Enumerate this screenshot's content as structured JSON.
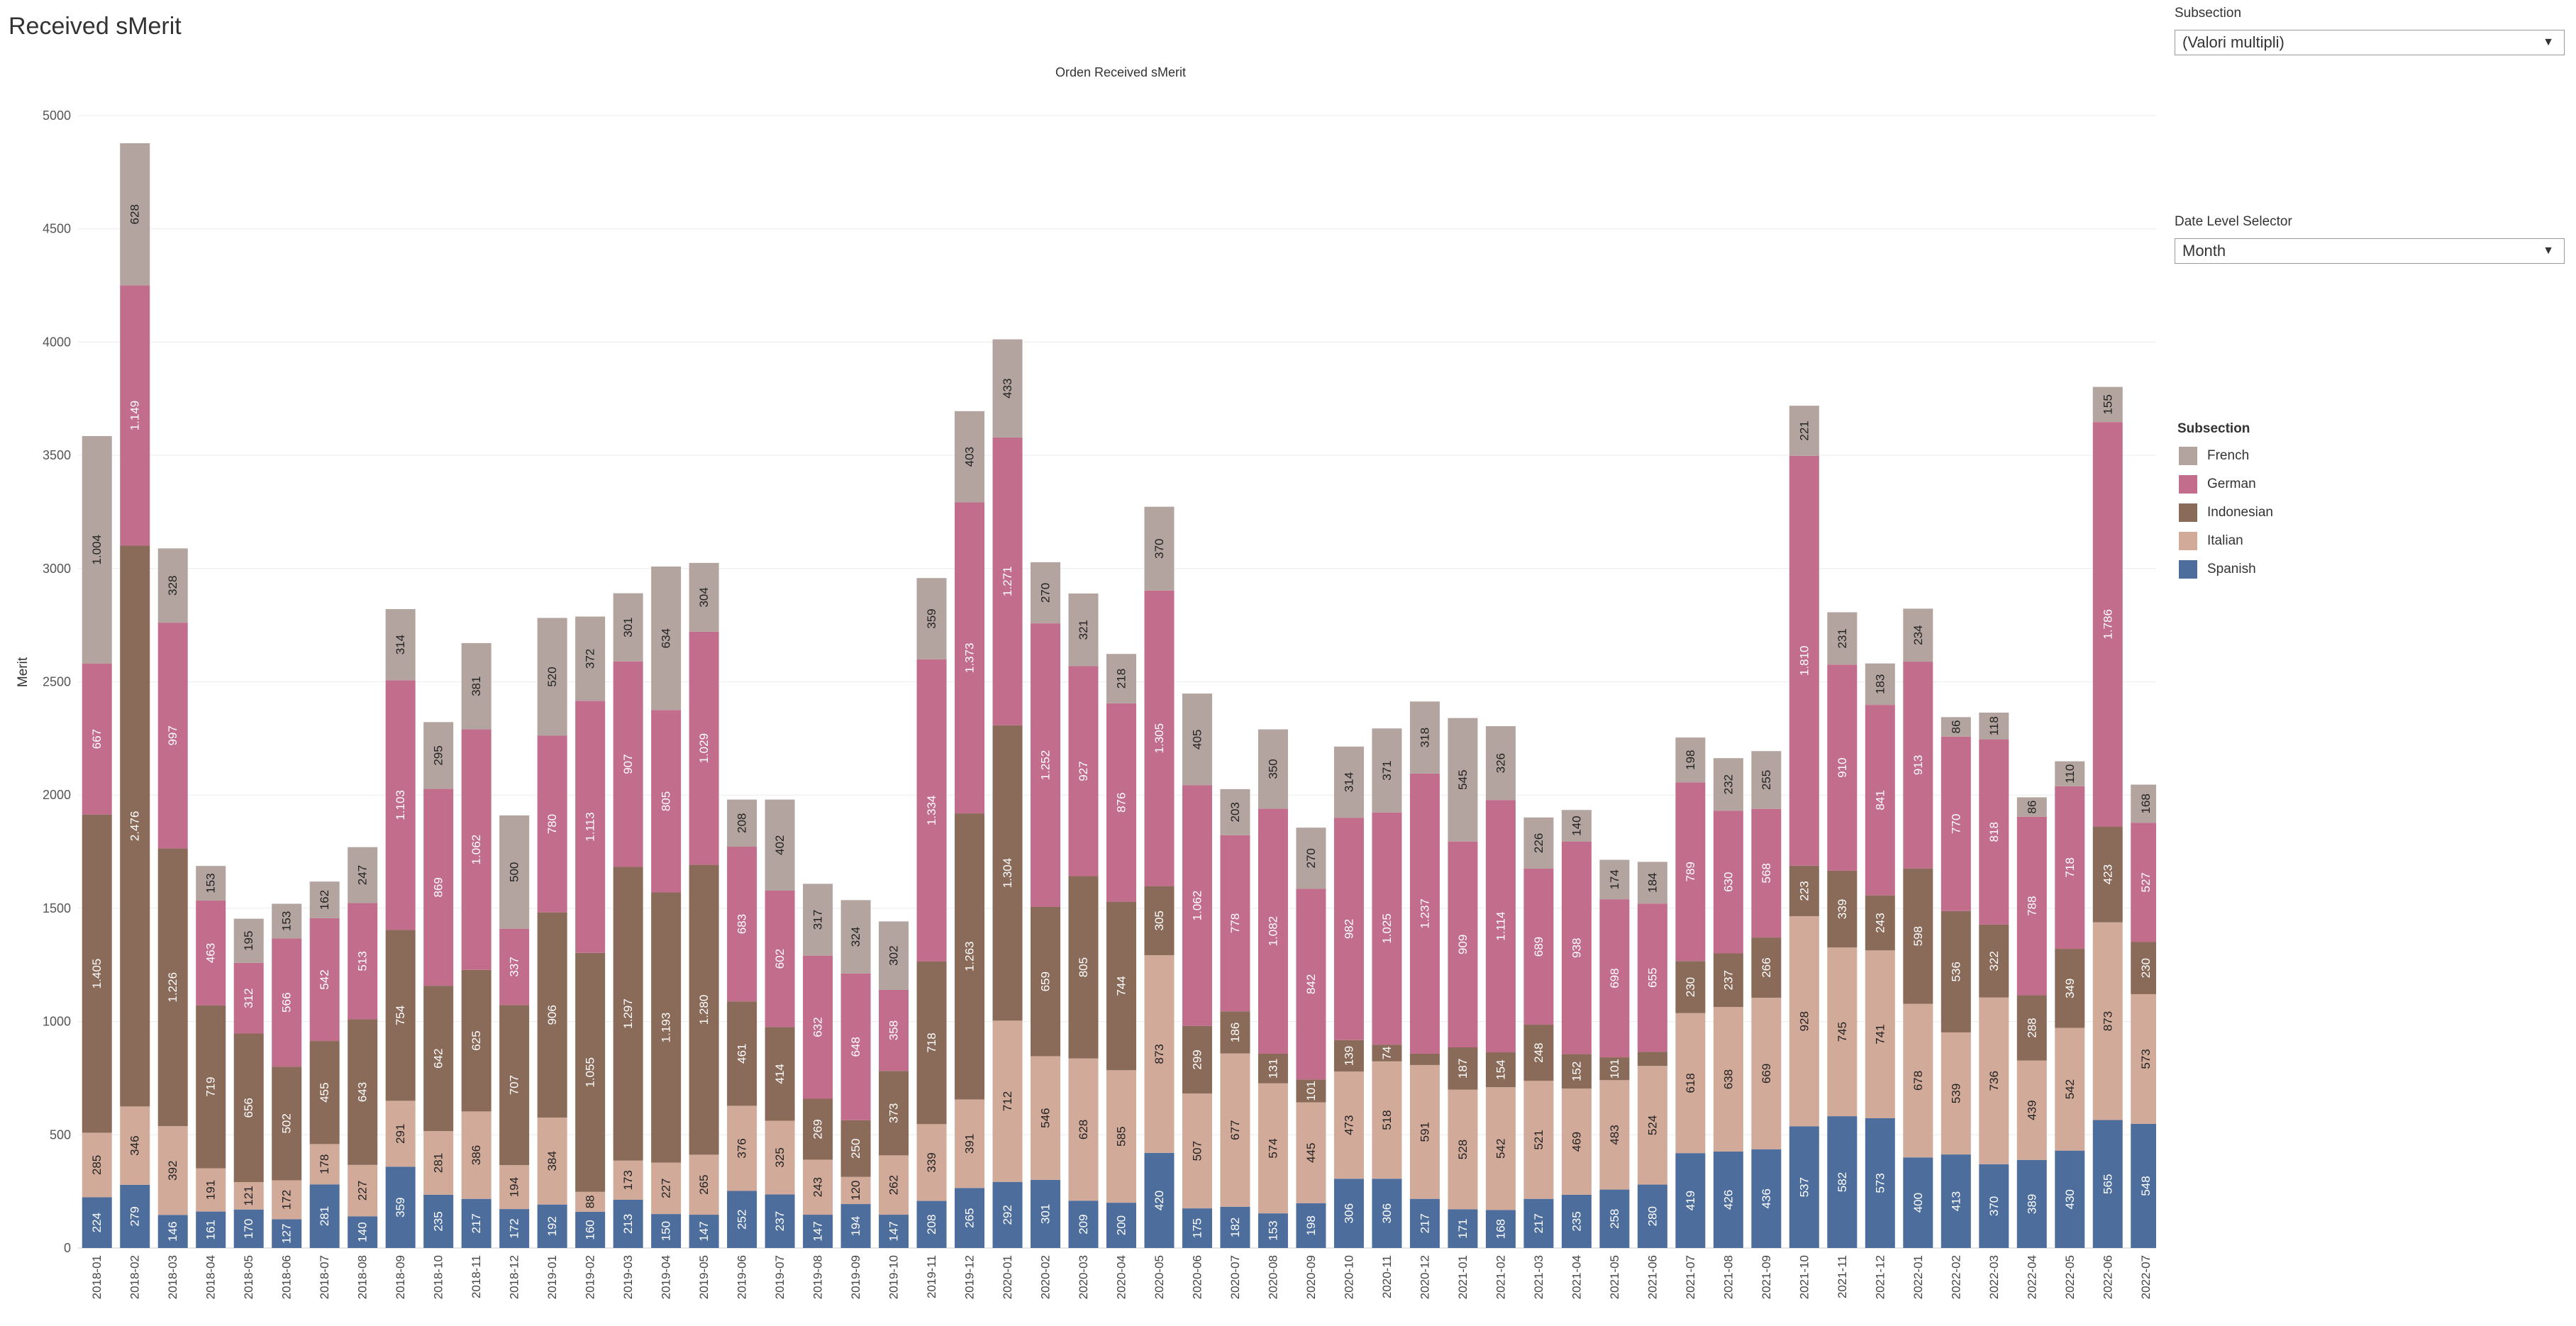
{
  "page": {
    "title": "Received sMerit"
  },
  "filters": {
    "subsection_label": "Subsection",
    "subsection_value": "(Valori multipli)",
    "date_level_label": "Date Level Selector",
    "date_level_value": "Month"
  },
  "legend": {
    "title": "Subsection",
    "items": [
      {
        "name": "French",
        "color": "#b3a49f"
      },
      {
        "name": "German",
        "color": "#c36d8d"
      },
      {
        "name": "Indonesian",
        "color": "#8a6a58"
      },
      {
        "name": "Italian",
        "color": "#d1aa9a"
      },
      {
        "name": "Spanish",
        "color": "#4d6e9d"
      }
    ]
  },
  "chart_data": {
    "type": "bar",
    "stacked": true,
    "title": "Orden Received sMerit",
    "ylabel": "Merit",
    "xlabel": "",
    "ylim": [
      0,
      5000
    ],
    "yticks": [
      0,
      500,
      1000,
      1500,
      2000,
      2500,
      3000,
      3500,
      4000,
      4500,
      5000
    ],
    "grid": true,
    "legend_position": "right",
    "categories": [
      "2018-01",
      "2018-02",
      "2018-03",
      "2018-04",
      "2018-05",
      "2018-06",
      "2018-07",
      "2018-08",
      "2018-09",
      "2018-10",
      "2018-11",
      "2018-12",
      "2019-01",
      "2019-02",
      "2019-03",
      "2019-04",
      "2019-05",
      "2019-06",
      "2019-07",
      "2019-08",
      "2019-09",
      "2019-10",
      "2019-11",
      "2019-12",
      "2020-01",
      "2020-02",
      "2020-03",
      "2020-04",
      "2020-05",
      "2020-06",
      "2020-07",
      "2020-08",
      "2020-09",
      "2020-10",
      "2020-11",
      "2020-12",
      "2021-01",
      "2021-02",
      "2021-03",
      "2021-04",
      "2021-05",
      "2021-06",
      "2021-07",
      "2021-08",
      "2021-09",
      "2021-10",
      "2021-11",
      "2021-12",
      "2022-01",
      "2022-02",
      "2022-03",
      "2022-04",
      "2022-05",
      "2022-06",
      "2022-07"
    ],
    "series": [
      {
        "name": "Spanish",
        "color": "#4d6e9d",
        "values": [
          224,
          279,
          146,
          161,
          170,
          127,
          281,
          140,
          359,
          235,
          217,
          172,
          192,
          160,
          213,
          150,
          147,
          252,
          237,
          147,
          194,
          147,
          208,
          265,
          292,
          301,
          209,
          200,
          420,
          175,
          182,
          153,
          198,
          306,
          306,
          217,
          171,
          168,
          217,
          235,
          258,
          280,
          419,
          426,
          436,
          537,
          582,
          573,
          400,
          413,
          370,
          389,
          430,
          565,
          548
        ],
        "labels": [
          "224",
          "279",
          "146",
          "161",
          "170",
          "127",
          "281",
          "140",
          "359",
          "235",
          "217",
          "172",
          "192",
          "160",
          "213",
          "150",
          "147",
          "252",
          "237",
          "147",
          "194",
          "147",
          "208",
          "265",
          "292",
          "301",
          "209",
          "200",
          "420",
          "175",
          "182",
          "153",
          "198",
          "306",
          "306",
          "217",
          "171",
          "168",
          "217",
          "235",
          "258",
          "280",
          "419",
          "426",
          "436",
          "537",
          "582",
          "573",
          "400",
          "413",
          "370",
          "389",
          "430",
          "565",
          "548"
        ]
      },
      {
        "name": "Italian",
        "color": "#d1aa9a",
        "values": [
          285,
          346,
          392,
          191,
          121,
          172,
          178,
          227,
          291,
          281,
          386,
          194,
          384,
          88,
          173,
          227,
          265,
          376,
          325,
          243,
          120,
          262,
          339,
          391,
          712,
          546,
          628,
          585,
          873,
          507,
          677,
          574,
          445,
          473,
          518,
          591,
          528,
          542,
          521,
          469,
          483,
          524,
          618,
          638,
          669,
          928,
          745,
          741,
          678,
          539,
          736,
          439,
          542,
          873,
          573
        ],
        "labels": [
          "285",
          "346",
          "392",
          "191",
          "121",
          "172",
          "178",
          "227",
          "291",
          "281",
          "386",
          "194",
          "384",
          "88",
          "173",
          "227",
          "265",
          "376",
          "325",
          "243",
          "120",
          "262",
          "339",
          "391",
          "712",
          "546",
          "628",
          "585",
          "873",
          "507",
          "677",
          "574",
          "445",
          "473",
          "518",
          "591",
          "528",
          "542",
          "521",
          "469",
          "483",
          "524",
          "618",
          "638",
          "669",
          "928",
          "745",
          "741",
          "678",
          "539",
          "736",
          "439",
          "542",
          "873",
          "573"
        ]
      },
      {
        "name": "Indonesian",
        "color": "#8a6a58",
        "values": [
          1405,
          2476,
          1226,
          719,
          656,
          502,
          455,
          643,
          754,
          642,
          625,
          707,
          906,
          1055,
          1297,
          1193,
          1280,
          461,
          414,
          269,
          250,
          373,
          718,
          1263,
          1304,
          659,
          805,
          744,
          305,
          299,
          186,
          131,
          101,
          139,
          74,
          50,
          187,
          154,
          248,
          152,
          101,
          62,
          230,
          237,
          266,
          223,
          339,
          243,
          598,
          536,
          322,
          288,
          349,
          423,
          230
        ],
        "labels": [
          "1.405",
          "2.476",
          "1.226",
          "719",
          "656",
          "502",
          "455",
          "643",
          "754",
          "642",
          "625",
          "707",
          "906",
          "1.055",
          "1.297",
          "1.193",
          "1.280",
          "461",
          "414",
          "269",
          "250",
          "373",
          "718",
          "1.263",
          "1.304",
          "659",
          "805",
          "744",
          "305",
          "299",
          "186",
          "131",
          "101",
          "139",
          "74",
          "50",
          "187",
          "154",
          "248",
          "152",
          "101",
          "62",
          "230",
          "237",
          "266",
          "223",
          "339",
          "243",
          "598",
          "536",
          "322",
          "288",
          "349",
          "423",
          "230"
        ]
      },
      {
        "name": "German",
        "color": "#c36d8d",
        "values": [
          667,
          1149,
          997,
          463,
          312,
          566,
          542,
          513,
          1103,
          869,
          1062,
          337,
          780,
          1113,
          907,
          805,
          1029,
          683,
          602,
          632,
          648,
          358,
          1334,
          1373,
          1271,
          1252,
          927,
          876,
          1305,
          1062,
          778,
          1082,
          842,
          982,
          1025,
          1237,
          909,
          1114,
          689,
          938,
          698,
          655,
          789,
          630,
          568,
          1810,
          910,
          841,
          913,
          770,
          818,
          788,
          718,
          1786,
          527
        ],
        "labels": [
          "667",
          "1.149",
          "997",
          "463",
          "312",
          "566",
          "542",
          "513",
          "1.103",
          "869",
          "1.062",
          "337",
          "780",
          "1.113",
          "907",
          "805",
          "1.029",
          "683",
          "602",
          "632",
          "648",
          "358",
          "1.334",
          "1.373",
          "1.271",
          "1.252",
          "927",
          "876",
          "1.305",
          "1.062",
          "778",
          "1.082",
          "842",
          "982",
          "1.025",
          "1.237",
          "909",
          "1.114",
          "689",
          "938",
          "698",
          "655",
          "789",
          "630",
          "568",
          "1.810",
          "910",
          "841",
          "913",
          "770",
          "818",
          "788",
          "718",
          "1.786",
          "527"
        ]
      },
      {
        "name": "French",
        "color": "#b3a49f",
        "values": [
          1004,
          628,
          328,
          153,
          195,
          153,
          162,
          247,
          314,
          295,
          381,
          500,
          520,
          372,
          301,
          634,
          304,
          208,
          402,
          317,
          324,
          302,
          359,
          403,
          433,
          270,
          321,
          218,
          370,
          405,
          203,
          350,
          270,
          314,
          371,
          318,
          545,
          326,
          226,
          140,
          174,
          184,
          198,
          232,
          255,
          221,
          231,
          183,
          234,
          86,
          118,
          86,
          110,
          155,
          168
        ],
        "labels": [
          "1.004",
          "628",
          "328",
          "153",
          "195",
          "153",
          "162",
          "247",
          "314",
          "295",
          "381",
          "500",
          "520",
          "372",
          "301",
          "634",
          "304",
          "208",
          "402",
          "317",
          "324",
          "302",
          "359",
          "403",
          "433",
          "270",
          "321",
          "218",
          "370",
          "405",
          "203",
          "350",
          "270",
          "314",
          "371",
          "318",
          "545",
          "326",
          "226",
          "140",
          "174",
          "184",
          "198",
          "232",
          "255",
          "221",
          "231",
          "183",
          "234",
          "86",
          "118",
          "86",
          "110",
          "155",
          "168"
        ]
      }
    ]
  }
}
